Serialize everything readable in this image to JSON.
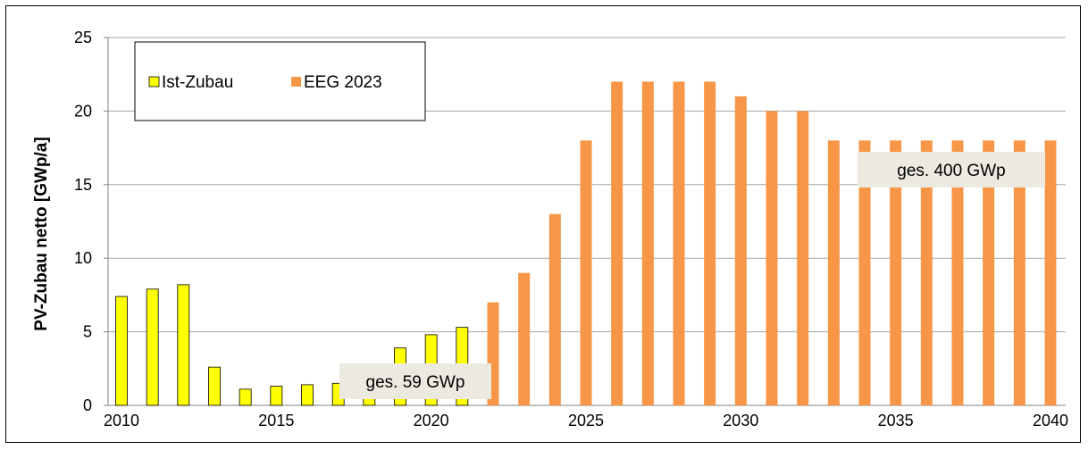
{
  "chart_data": {
    "type": "bar",
    "title": "",
    "xlabel": "",
    "ylabel": "PV-Zubau netto [GWp/a]",
    "ylim": [
      0,
      25
    ],
    "yticks": [
      0,
      5,
      10,
      15,
      20,
      25
    ],
    "xlim": [
      2010,
      2040
    ],
    "xticks": [
      2010,
      2015,
      2020,
      2025,
      2030,
      2035,
      2040
    ],
    "grid": true,
    "legend_position": "top-left",
    "colors": {
      "ist": "#ffff00",
      "eeg": "#f79646",
      "grid": "#a6a6a6"
    },
    "series": [
      {
        "name": "Ist-Zubau",
        "x": [
          2010,
          2011,
          2012,
          2013,
          2014,
          2015,
          2016,
          2017,
          2018,
          2019,
          2020,
          2021
        ],
        "values": [
          7.4,
          7.9,
          8.2,
          2.6,
          1.1,
          1.3,
          1.4,
          1.5,
          2.7,
          3.9,
          4.8,
          5.3
        ]
      },
      {
        "name": "EEG 2023",
        "x": [
          2022,
          2023,
          2024,
          2025,
          2026,
          2027,
          2028,
          2029,
          2030,
          2031,
          2032,
          2033,
          2034,
          2035,
          2036,
          2037,
          2038,
          2039,
          2040
        ],
        "values": [
          7,
          9,
          13,
          18,
          22,
          22,
          22,
          22,
          21,
          20,
          20,
          18,
          18,
          18,
          18,
          18,
          18,
          18,
          18
        ]
      }
    ],
    "annotations": [
      "ges. 59 GWp",
      "ges. 400 GWp"
    ]
  }
}
